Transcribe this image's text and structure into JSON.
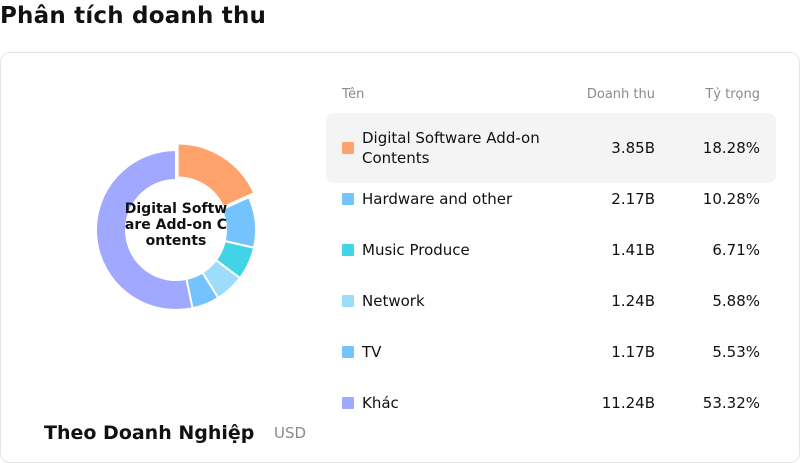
{
  "page_title": "Phân tích doanh thu",
  "panel": {
    "group_title": "Theo Doanh Nghiệp",
    "unit": "USD",
    "center_label": "Digital Software Add-on Contents"
  },
  "table": {
    "headers": {
      "name": "Tên",
      "revenue": "Doanh thu",
      "share": "Tỷ trọng"
    },
    "rows": [
      {
        "name": "Digital Software Add-on Contents",
        "revenue": "3.85B",
        "share": "18.28%",
        "color": "#ffa26b",
        "highlight": true
      },
      {
        "name": "Hardware and other",
        "revenue": "2.17B",
        "share": "10.28%",
        "color": "#74c3ff",
        "highlight": false
      },
      {
        "name": "Music Produce",
        "revenue": "1.41B",
        "share": "6.71%",
        "color": "#41d3e6",
        "highlight": false
      },
      {
        "name": "Network",
        "revenue": "1.24B",
        "share": "5.88%",
        "color": "#9ddcfa",
        "highlight": false
      },
      {
        "name": "TV",
        "revenue": "1.17B",
        "share": "5.53%",
        "color": "#74c3ff",
        "highlight": false
      },
      {
        "name": "Khác",
        "revenue": "11.24B",
        "share": "53.32%",
        "color": "#a0a8ff",
        "highlight": false
      }
    ]
  },
  "chart_data": {
    "type": "pie",
    "variant": "donut",
    "categories": [
      "Digital Software Add-on Contents",
      "Hardware and other",
      "Music Produce",
      "Network",
      "TV",
      "Khác"
    ],
    "values": [
      18.28,
      10.28,
      6.71,
      5.88,
      5.53,
      53.32
    ],
    "revenue_labels": [
      "3.85B",
      "2.17B",
      "1.41B",
      "1.24B",
      "1.17B",
      "11.24B"
    ],
    "colors": [
      "#ffa26b",
      "#74c3ff",
      "#41d3e6",
      "#9ddcfa",
      "#74c3ff",
      "#a0a8ff"
    ],
    "exploded_index": 0,
    "legend": "right-table"
  }
}
